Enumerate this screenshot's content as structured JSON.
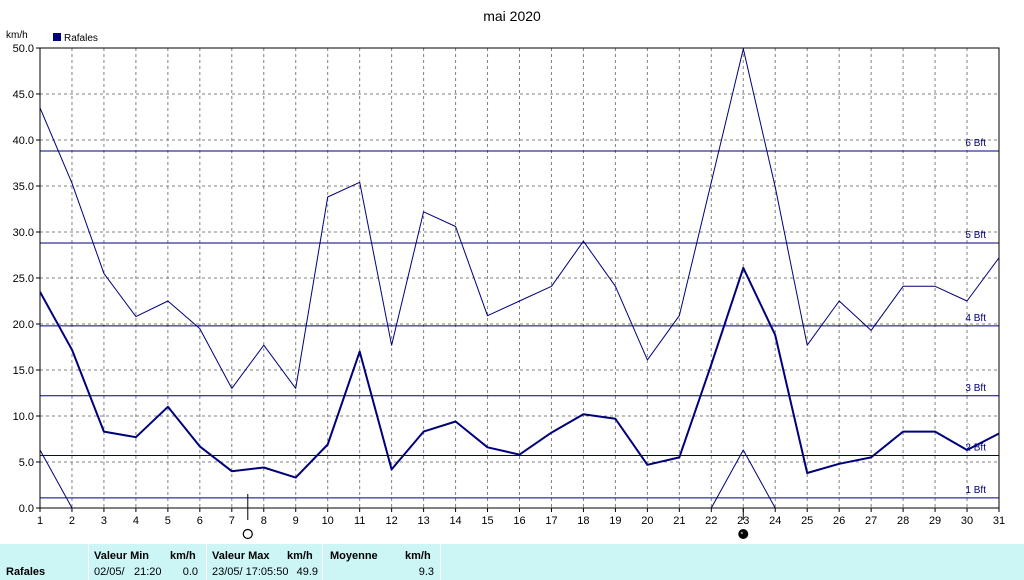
{
  "chart_data": {
    "type": "line",
    "title": "mai 2020",
    "ylabel": "km/h",
    "legend": [
      {
        "label": "Rafales",
        "color": "#00007a"
      }
    ],
    "legend_position": "top-left",
    "grid": true,
    "xlim": [
      1,
      31
    ],
    "ylim": [
      0,
      50
    ],
    "x_ticks": [
      1,
      2,
      3,
      4,
      5,
      6,
      7,
      8,
      9,
      10,
      11,
      12,
      13,
      14,
      15,
      16,
      17,
      18,
      19,
      20,
      21,
      22,
      23,
      24,
      25,
      26,
      27,
      28,
      29,
      30,
      31
    ],
    "y_ticks": [
      "0.0",
      "5.0",
      "10.0",
      "15.0",
      "20.0",
      "25.0",
      "30.0",
      "35.0",
      "40.0",
      "45.0",
      "50.0"
    ],
    "series": [
      {
        "role": "max",
        "width": 1,
        "x": [
          1,
          2,
          3,
          4,
          5,
          6,
          7,
          8,
          9,
          10,
          11,
          12,
          13,
          14,
          15,
          16,
          17,
          18,
          19,
          20,
          21,
          22,
          23,
          24,
          25,
          26,
          27,
          28,
          29,
          30,
          31
        ],
        "values": [
          43.5,
          35.3,
          25.5,
          20.8,
          22.5,
          19.5,
          13.0,
          17.7,
          13.0,
          33.8,
          35.4,
          17.7,
          32.2,
          30.6,
          20.9,
          22.5,
          24.1,
          29.0,
          24.1,
          16.1,
          20.9,
          35.4,
          49.9,
          34.9,
          17.7,
          22.5,
          19.3,
          24.1,
          24.1,
          22.5,
          27.2
        ]
      },
      {
        "role": "mean",
        "width": 2,
        "x": [
          1,
          2,
          3,
          4,
          5,
          6,
          7,
          8,
          9,
          10,
          11,
          12,
          13,
          14,
          15,
          16,
          17,
          18,
          19,
          20,
          21,
          22,
          23,
          24,
          25,
          26,
          27,
          28,
          29,
          30,
          31
        ],
        "values": [
          23.5,
          17.2,
          8.3,
          7.7,
          11.0,
          6.7,
          4.0,
          4.4,
          3.3,
          6.9,
          17.0,
          4.2,
          8.3,
          9.4,
          6.6,
          5.8,
          8.2,
          10.2,
          9.7,
          4.7,
          5.5,
          15.6,
          26.1,
          18.8,
          3.8,
          4.8,
          5.5,
          8.3,
          8.3,
          6.3,
          8.1
        ]
      },
      {
        "role": "min",
        "width": 1,
        "x": [
          1,
          2,
          22,
          23,
          24
        ],
        "values": [
          6.3,
          0.0,
          0.0,
          6.3,
          0.0
        ]
      }
    ],
    "reference_lines": [
      {
        "label": "1 Bft",
        "value": 1.1
      },
      {
        "label": "2 Bft",
        "value": 5.7
      },
      {
        "label": "3 Bft",
        "value": 12.2
      },
      {
        "label": "4 Bft",
        "value": 19.8
      },
      {
        "label": "5 Bft",
        "value": 28.8
      },
      {
        "label": "6 Bft",
        "value": 38.8
      }
    ],
    "moon_phases": [
      {
        "phase": "full-moon",
        "day": 7.5
      },
      {
        "phase": "new-moon",
        "day": 23
      }
    ],
    "colors": {
      "line": "#00007a",
      "grid": "#808080",
      "axis": "#000000"
    }
  },
  "stats_panel": {
    "row_label": "Rafales",
    "min_header": "Valeur Min",
    "min_unit": "km/h",
    "min_date": "02/05/",
    "min_time": "21:20",
    "min_value": "0.0",
    "max_header": "Valeur Max",
    "max_unit": "km/h",
    "max_datetime": "23/05/  17:05:50",
    "max_value": "49.9",
    "mean_header": "Moyenne",
    "mean_unit": "km/h",
    "mean_value": "9.3",
    "colors": {
      "background": "#ccf5f5"
    }
  }
}
